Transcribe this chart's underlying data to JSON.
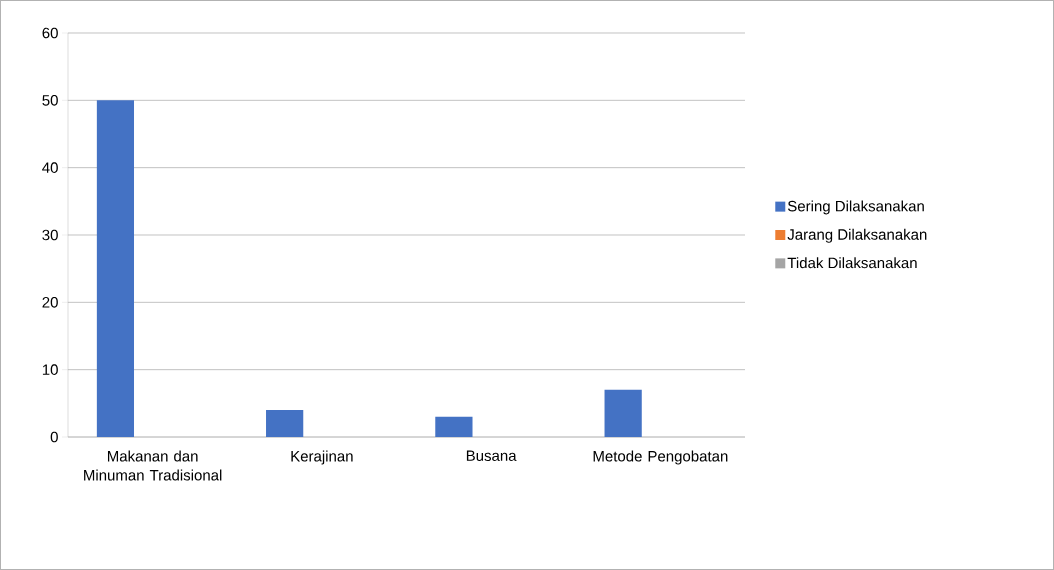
{
  "chart_data": {
    "type": "bar",
    "categories": [
      "Makanan dan Minuman Tradisional",
      "Kerajinan",
      "Busana",
      "Metode Pengobatan"
    ],
    "series": [
      {
        "name": "Sering Dilaksanakan",
        "color": "#4472c4",
        "values": [
          50,
          4,
          3,
          7
        ]
      },
      {
        "name": "Jarang Dilaksanakan",
        "color": "#ed7d31",
        "values": [
          0,
          0,
          0,
          0
        ]
      },
      {
        "name": "Tidak Dilaksanakan",
        "color": "#a5a5a5",
        "values": [
          0,
          0,
          0,
          0
        ]
      }
    ],
    "ylim": [
      0,
      60
    ],
    "yticks": [
      0,
      10,
      20,
      30,
      40,
      50,
      60
    ],
    "grid": "y",
    "legend": "right"
  }
}
